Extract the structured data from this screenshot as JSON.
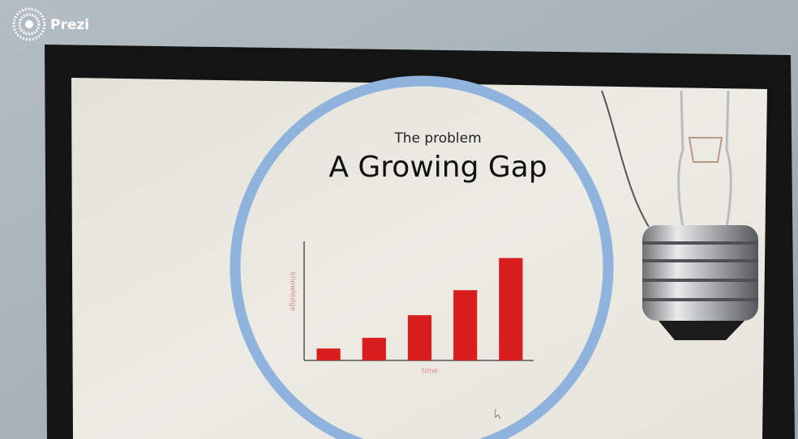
{
  "brand": "Prezi",
  "chart_data": {
    "type": "bar",
    "subtitle": "The problem",
    "title": "A Growing Gap",
    "x_label": "time",
    "y_label": "knowledge",
    "categories": [
      null,
      null,
      null,
      null,
      null
    ],
    "values": [
      10,
      19,
      38,
      59,
      86
    ],
    "color": "#d91e1e",
    "ylim": [
      0,
      100
    ],
    "grid": false
  }
}
